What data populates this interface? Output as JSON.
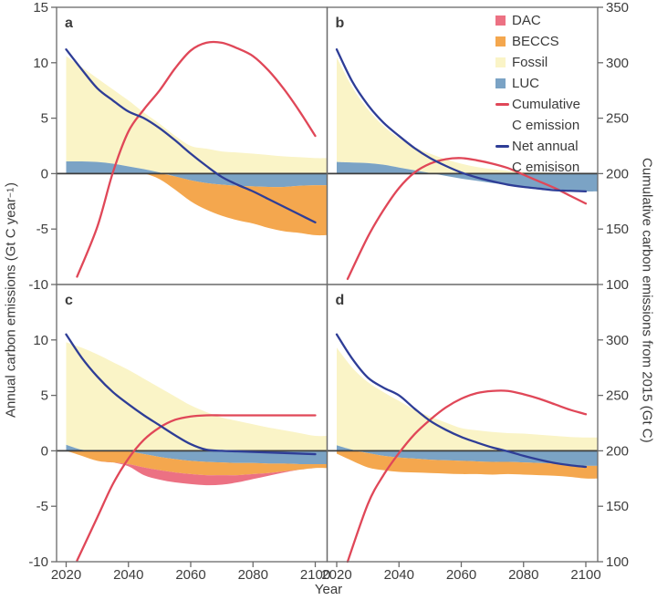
{
  "figure": {
    "x_axis": {
      "title": "Year",
      "tick_labels": [
        "2020",
        "2040",
        "2060",
        "2080",
        "2100"
      ]
    },
    "y_left": {
      "title_pre": "Annual carbon emissions (Gt C year",
      "title_sup": "−1",
      "title_post": ")",
      "tick_labels_top_row": [
        "15",
        "10",
        "5",
        "0",
        "-5",
        "-10"
      ],
      "tick_labels_bottom_row": [
        "10",
        "5",
        "0",
        "-5",
        "-10"
      ]
    },
    "y_right": {
      "title": "Cumulative carbon emissions from 2015 (Gt C)",
      "tick_labels_top_row": [
        "350",
        "300",
        "250",
        "200",
        "150",
        "100"
      ],
      "tick_labels_bottom_row": [
        "300",
        "250",
        "200",
        "150",
        "100"
      ]
    },
    "legend": [
      {
        "key": "dac",
        "swatch": "square",
        "label": "DAC"
      },
      {
        "key": "beccs",
        "swatch": "square",
        "label": "BECCS"
      },
      {
        "key": "fossil",
        "swatch": "square",
        "label": "Fossil"
      },
      {
        "key": "luc",
        "swatch": "square",
        "label": "LUC"
      },
      {
        "key": "cumulative",
        "swatch": "line",
        "label": "Cumulative",
        "label2": "C emission"
      },
      {
        "key": "net",
        "swatch": "line",
        "label": "Net annual",
        "label2": "C emisison"
      }
    ]
  },
  "chart_data": {
    "type": "area",
    "title": "",
    "xlabel": "Year",
    "ylabel_left": "Annual carbon emissions (Gt C year-1)",
    "ylabel_right": "Cumulative carbon emissions from 2015 (Gt C)",
    "x_range": [
      2017,
      2104
    ],
    "y_left_range": [
      -10,
      15
    ],
    "y_right_range": [
      100,
      350
    ],
    "colors": {
      "dac": "#ec7183",
      "beccs": "#f4a74e",
      "fossil": "#faf4c7",
      "luc": "#7ba3c5",
      "cumulative": "#e04758",
      "net": "#2e3d96",
      "border": "#6a6a6a",
      "zero_line": "#3d3d3d"
    },
    "years": [
      2020,
      2025,
      2030,
      2035,
      2040,
      2045,
      2050,
      2055,
      2060,
      2065,
      2070,
      2075,
      2080,
      2085,
      2090,
      2095,
      2100
    ],
    "panels": [
      {
        "label": "a",
        "areas": {
          "luc": [
            1.1,
            1.1,
            1.05,
            0.9,
            0.65,
            0.4,
            0.1,
            -0.25,
            -0.6,
            -0.85,
            -1.0,
            -1.1,
            -1.15,
            -1.2,
            -1.2,
            -1.1,
            -1.05
          ],
          "fossil": [
            9.5,
            8.5,
            7.55,
            6.7,
            5.95,
            5.1,
            4.4,
            3.4,
            2.5,
            2.25,
            2.0,
            1.9,
            1.8,
            1.68,
            1.55,
            1.48,
            1.4
          ],
          "beccs": [
            0,
            0,
            0,
            0,
            0,
            0,
            -0.5,
            -1.2,
            -1.9,
            -2.4,
            -2.8,
            -3.1,
            -3.35,
            -3.7,
            -4.0,
            -4.25,
            -4.5
          ],
          "dac": [
            0,
            0,
            0,
            0,
            0,
            0,
            0,
            0,
            0,
            0,
            0,
            0,
            0,
            0,
            0,
            0,
            0
          ]
        },
        "net_annual": [
          [
            2020,
            11.2
          ],
          [
            2025,
            9.4
          ],
          [
            2030,
            7.7
          ],
          [
            2035,
            6.6
          ],
          [
            2040,
            5.6
          ],
          [
            2045,
            5.0
          ],
          [
            2050,
            4.1
          ],
          [
            2055,
            3.0
          ],
          [
            2060,
            1.8
          ],
          [
            2065,
            0.7
          ],
          [
            2070,
            -0.3
          ],
          [
            2075,
            -1.0
          ],
          [
            2080,
            -1.6
          ],
          [
            2085,
            -2.3
          ],
          [
            2090,
            -3.0
          ],
          [
            2095,
            -3.7
          ],
          [
            2100,
            -4.4
          ]
        ],
        "cumulative": [
          [
            2023.5,
            107
          ],
          [
            2030,
            152
          ],
          [
            2035,
            201
          ],
          [
            2040,
            238
          ],
          [
            2045,
            258
          ],
          [
            2050,
            275
          ],
          [
            2055,
            295
          ],
          [
            2060,
            311
          ],
          [
            2065,
            318
          ],
          [
            2070,
            318
          ],
          [
            2075,
            313
          ],
          [
            2080,
            306
          ],
          [
            2085,
            293
          ],
          [
            2090,
            276
          ],
          [
            2095,
            256
          ],
          [
            2100,
            234
          ]
        ]
      },
      {
        "label": "b",
        "areas": {
          "luc": [
            1.05,
            1.0,
            0.95,
            0.8,
            0.55,
            0.3,
            0.05,
            -0.2,
            -0.45,
            -0.65,
            -0.85,
            -1.0,
            -1.15,
            -1.3,
            -1.4,
            -1.5,
            -1.6
          ],
          "fossil": [
            9.45,
            6.8,
            4.85,
            3.5,
            2.65,
            2.1,
            1.75,
            1.3,
            0.9,
            0.6,
            0.4,
            0.25,
            0.15,
            0.1,
            0.08,
            0.05,
            0.04
          ],
          "beccs": [
            0,
            0,
            0,
            0,
            0,
            0,
            0,
            0,
            0,
            0,
            0,
            0,
            0,
            0,
            0,
            0,
            0
          ],
          "dac": [
            0,
            0,
            0,
            0,
            0,
            0,
            0,
            0,
            0,
            0,
            0,
            0,
            0,
            0,
            0,
            0,
            0
          ]
        },
        "net_annual": [
          [
            2020,
            11.2
          ],
          [
            2025,
            8.3
          ],
          [
            2030,
            6.2
          ],
          [
            2035,
            4.6
          ],
          [
            2040,
            3.4
          ],
          [
            2045,
            2.3
          ],
          [
            2050,
            1.4
          ],
          [
            2055,
            0.7
          ],
          [
            2060,
            0.1
          ],
          [
            2065,
            -0.35
          ],
          [
            2070,
            -0.7
          ],
          [
            2075,
            -1.0
          ],
          [
            2080,
            -1.2
          ],
          [
            2085,
            -1.35
          ],
          [
            2090,
            -1.5
          ],
          [
            2095,
            -1.55
          ],
          [
            2100,
            -1.6
          ]
        ],
        "cumulative": [
          [
            2023.5,
            105
          ],
          [
            2030,
            143
          ],
          [
            2035,
            167
          ],
          [
            2040,
            187
          ],
          [
            2045,
            201
          ],
          [
            2050,
            209
          ],
          [
            2055,
            213
          ],
          [
            2060,
            214
          ],
          [
            2065,
            212
          ],
          [
            2070,
            209
          ],
          [
            2075,
            205
          ],
          [
            2080,
            199
          ],
          [
            2085,
            193
          ],
          [
            2090,
            187
          ],
          [
            2095,
            180
          ],
          [
            2100,
            173
          ]
        ]
      },
      {
        "label": "c",
        "areas": {
          "luc": [
            0.55,
            0.1,
            0.02,
            0,
            -0.05,
            -0.3,
            -0.55,
            -0.75,
            -0.9,
            -1.0,
            -1.05,
            -1.1,
            -1.1,
            -1.15,
            -1.15,
            -1.2,
            -1.2
          ],
          "fossil": [
            9.25,
            9.2,
            8.68,
            8.0,
            7.3,
            6.5,
            5.7,
            4.9,
            4.1,
            3.5,
            3.0,
            2.7,
            2.4,
            2.1,
            1.85,
            1.6,
            1.35
          ],
          "beccs": [
            0,
            -0.45,
            -0.9,
            -1.05,
            -1.15,
            -1.2,
            -1.2,
            -1.2,
            -1.2,
            -1.2,
            -1.15,
            -1.1,
            -1.0,
            -0.85,
            -0.7,
            -0.5,
            -0.35
          ],
          "dac": [
            0,
            0,
            0,
            0,
            -0.2,
            -0.7,
            -0.85,
            -0.9,
            -0.9,
            -0.9,
            -0.85,
            -0.65,
            -0.45,
            -0.25,
            -0.1,
            0,
            0
          ]
        },
        "net_annual": [
          [
            2020,
            10.5
          ],
          [
            2025,
            8.4
          ],
          [
            2030,
            6.7
          ],
          [
            2035,
            5.3
          ],
          [
            2040,
            4.2
          ],
          [
            2045,
            3.2
          ],
          [
            2050,
            2.3
          ],
          [
            2055,
            1.4
          ],
          [
            2060,
            0.6
          ],
          [
            2065,
            0.1
          ],
          [
            2070,
            0
          ],
          [
            2075,
            -0.05
          ],
          [
            2080,
            -0.1
          ],
          [
            2085,
            -0.15
          ],
          [
            2090,
            -0.2
          ],
          [
            2095,
            -0.25
          ],
          [
            2100,
            -0.3
          ]
        ],
        "cumulative": [
          [
            2023.5,
            101
          ],
          [
            2030,
            140
          ],
          [
            2035,
            170
          ],
          [
            2040,
            193
          ],
          [
            2045,
            210
          ],
          [
            2050,
            221
          ],
          [
            2055,
            228
          ],
          [
            2060,
            231
          ],
          [
            2065,
            232
          ],
          [
            2070,
            232
          ],
          [
            2075,
            232
          ],
          [
            2080,
            232
          ],
          [
            2085,
            232
          ],
          [
            2090,
            232
          ],
          [
            2095,
            232
          ],
          [
            2100,
            232
          ]
        ]
      },
      {
        "label": "d",
        "areas": {
          "luc": [
            0.5,
            0.1,
            -0.2,
            -0.45,
            -0.6,
            -0.7,
            -0.8,
            -0.85,
            -0.9,
            -0.95,
            -1.0,
            -1.0,
            -1.05,
            -1.1,
            -1.15,
            -1.25,
            -1.35
          ],
          "fossil": [
            8.8,
            7.4,
            6.2,
            5.3,
            4.5,
            3.7,
            3.1,
            2.55,
            2.05,
            1.85,
            1.7,
            1.6,
            1.55,
            1.45,
            1.35,
            1.25,
            1.2
          ],
          "beccs": [
            -0.25,
            -0.9,
            -1.3,
            -1.3,
            -1.3,
            -1.25,
            -1.2,
            -1.2,
            -1.2,
            -1.15,
            -1.15,
            -1.1,
            -1.1,
            -1.1,
            -1.1,
            -1.1,
            -1.15
          ],
          "dac": [
            0,
            0,
            0,
            0,
            0,
            0,
            0,
            0,
            0,
            0,
            0,
            0,
            0,
            0,
            0,
            0,
            0
          ]
        },
        "net_annual": [
          [
            2020,
            10.5
          ],
          [
            2025,
            8.3
          ],
          [
            2030,
            6.6
          ],
          [
            2035,
            5.7
          ],
          [
            2040,
            5.0
          ],
          [
            2045,
            3.8
          ],
          [
            2050,
            2.7
          ],
          [
            2055,
            1.9
          ],
          [
            2060,
            1.25
          ],
          [
            2065,
            0.75
          ],
          [
            2070,
            0.3
          ],
          [
            2075,
            -0.05
          ],
          [
            2080,
            -0.45
          ],
          [
            2085,
            -0.8
          ],
          [
            2090,
            -1.1
          ],
          [
            2095,
            -1.3
          ],
          [
            2100,
            -1.45
          ]
        ],
        "cumulative": [
          [
            2023.5,
            100
          ],
          [
            2030,
            152
          ],
          [
            2035,
            178
          ],
          [
            2040,
            198
          ],
          [
            2045,
            215
          ],
          [
            2050,
            228
          ],
          [
            2055,
            239
          ],
          [
            2060,
            247
          ],
          [
            2065,
            252
          ],
          [
            2070,
            254
          ],
          [
            2075,
            254
          ],
          [
            2080,
            251
          ],
          [
            2085,
            247
          ],
          [
            2090,
            242
          ],
          [
            2095,
            237
          ],
          [
            2100,
            233
          ]
        ]
      }
    ]
  }
}
